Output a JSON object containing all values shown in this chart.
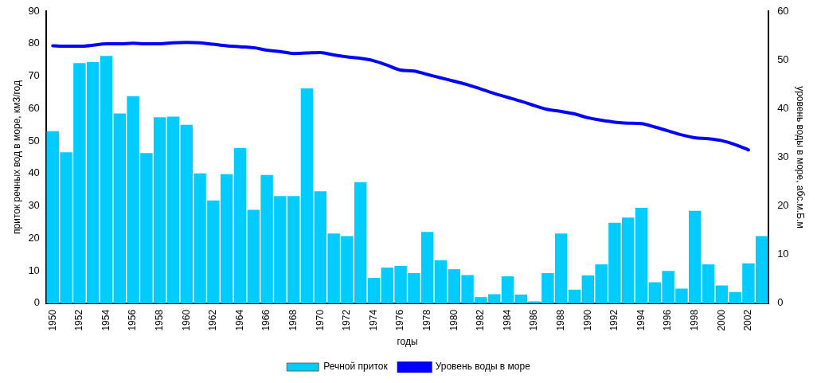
{
  "chart_data": {
    "type": "bar",
    "xlabel": "годы",
    "ylabel": "приток речных вод в море, км3/год",
    "y2label": "уровень воды в море, абс.м.Б.м",
    "categories": [
      "1950",
      null,
      "1952",
      null,
      "1954",
      null,
      "1956",
      null,
      "1958",
      null,
      "1960",
      null,
      "1962",
      null,
      "1964",
      null,
      "1966",
      null,
      "1968",
      null,
      "1970",
      null,
      "1972",
      null,
      "1974",
      null,
      "1976",
      null,
      "1978",
      null,
      "1980",
      null,
      "1982",
      null,
      "1984",
      null,
      "1986",
      null,
      "1988",
      null,
      "1990",
      null,
      "1992",
      null,
      "1994",
      null,
      "1996",
      null,
      "1998",
      null,
      "2000",
      null,
      "2002",
      null
    ],
    "series": [
      {
        "name": "Речной приток",
        "type": "bar",
        "color": "#00ccff",
        "values": [
          53,
          46.5,
          74,
          74.3,
          76.2,
          58.5,
          63.8,
          46.3,
          57.3,
          57.5,
          55,
          40,
          31.7,
          39.8,
          47.8,
          28.8,
          39.5,
          33,
          33,
          66.2,
          34.5,
          21.5,
          20.7,
          37.3,
          7.8,
          11,
          11.5,
          9.3,
          22,
          13.3,
          10.5,
          8.7,
          1.9,
          2.8,
          8.3,
          2.7,
          0.6,
          9.3,
          21.5,
          4.2,
          8.6,
          12,
          24.8,
          26.4,
          29.4,
          6.5,
          10,
          4.5,
          28.5,
          12,
          5.5,
          3.5,
          12.3,
          20.7
        ]
      },
      {
        "name": "Уровень воды в море",
        "type": "line",
        "axis": "y2",
        "color": "#0000ff",
        "values": [
          52.9,
          52.8,
          52.8,
          53.0,
          53.3,
          53.3,
          53.4,
          53.3,
          53.3,
          53.5,
          53.6,
          53.5,
          53.2,
          52.9,
          52.7,
          52.5,
          52.0,
          51.7,
          51.3,
          51.4,
          51.5,
          51.0,
          50.6,
          50.3,
          49.8,
          48.9,
          47.9,
          47.7,
          47.0,
          46.3,
          45.6,
          44.9,
          44.0,
          43.1,
          42.3,
          41.5,
          40.6,
          39.8,
          39.4,
          38.9,
          38.1,
          37.6,
          37.2,
          37.0,
          36.9,
          36.2,
          35.4,
          34.6,
          34.0,
          33.8,
          33.4,
          32.6,
          31.5,
          null
        ]
      }
    ],
    "ylim": [
      0,
      90
    ],
    "yticks": [
      0,
      10,
      20,
      30,
      40,
      50,
      60,
      70,
      80,
      90
    ],
    "y2lim": [
      0,
      60
    ],
    "y2ticks": [
      0,
      10,
      20,
      30,
      40,
      50,
      60
    ],
    "grid": false,
    "legend": "bottom",
    "marker": "none"
  }
}
